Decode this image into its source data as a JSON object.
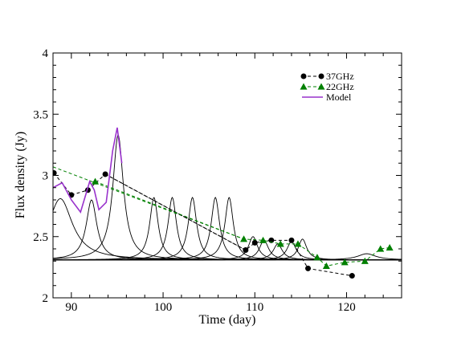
{
  "chart_data": {
    "type": "line",
    "xlabel": "Time (day)",
    "ylabel": "Flux density (Jy)",
    "xlim": [
      88,
      126
    ],
    "ylim": [
      2,
      4
    ],
    "xticks": [
      90,
      100,
      110,
      120
    ],
    "yticks": [
      2,
      2.5,
      3,
      3.5,
      4
    ],
    "xtick_labels": [
      "90",
      "100",
      "110",
      "120"
    ],
    "ytick_labels": [
      "2",
      "2.5",
      "3",
      "3.5",
      "4"
    ],
    "grid": false,
    "legend_position": "top-right",
    "baseline": 2.31,
    "series": [
      {
        "name": "37GHz",
        "style": "dashed-line-circle-markers",
        "color": "#000000",
        "x": [
          88.1,
          90.0,
          91.8,
          93.7,
          109.0,
          110.0,
          111.8,
          114.0,
          115.8,
          120.6
        ],
        "y": [
          3.02,
          2.84,
          2.88,
          3.01,
          2.39,
          2.45,
          2.47,
          2.47,
          2.24,
          2.18
        ]
      },
      {
        "name": "22GHz",
        "style": "dashed-line-triangle-markers",
        "color": "#008000",
        "x": [
          92.6,
          108.8,
          110.9,
          112.8,
          114.7,
          116.8,
          117.8,
          119.8,
          122.0,
          123.7,
          124.7
        ],
        "y": [
          2.95,
          2.48,
          2.47,
          2.44,
          2.44,
          2.33,
          2.26,
          2.29,
          2.3,
          2.4,
          2.41
        ]
      },
      {
        "name": "Model",
        "style": "solid-line",
        "color": "#9932CC",
        "x": [
          88.0,
          89.0,
          90.0,
          91.0,
          92.0,
          92.5,
          93.0,
          93.8,
          94.5,
          95.0,
          95.5
        ],
        "y": [
          2.9,
          2.94,
          2.8,
          2.7,
          2.95,
          2.88,
          2.72,
          2.78,
          3.2,
          3.39,
          3.1
        ]
      }
    ],
    "fit_trends": [
      {
        "color": "#008000",
        "x": [
          88.0,
          108.8
        ],
        "y": [
          3.07,
          2.48
        ]
      },
      {
        "color": "#000000",
        "x": [
          93.7,
          109.0
        ],
        "y": [
          3.01,
          2.39
        ]
      }
    ],
    "components": [
      {
        "center": 88.8,
        "peak": 2.81,
        "width": 1.6
      },
      {
        "center": 92.2,
        "peak": 2.8,
        "width": 0.7
      },
      {
        "center": 95.1,
        "peak": 3.33,
        "width": 0.7
      },
      {
        "center": 99.0,
        "peak": 2.82,
        "width": 0.55
      },
      {
        "center": 101.0,
        "peak": 2.82,
        "width": 0.55
      },
      {
        "center": 103.2,
        "peak": 2.82,
        "width": 0.55
      },
      {
        "center": 105.7,
        "peak": 2.82,
        "width": 0.55
      },
      {
        "center": 107.2,
        "peak": 2.82,
        "width": 0.55
      },
      {
        "center": 109.8,
        "peak": 2.5,
        "width": 0.6
      },
      {
        "center": 111.0,
        "peak": 2.47,
        "width": 0.6
      },
      {
        "center": 112.5,
        "peak": 2.44,
        "width": 0.6
      },
      {
        "center": 114.0,
        "peak": 2.46,
        "width": 0.6
      },
      {
        "center": 115.2,
        "peak": 2.48,
        "width": 0.55
      },
      {
        "center": 120.0,
        "peak": 2.31,
        "width": 1.5
      },
      {
        "center": 122.2,
        "peak": 2.36,
        "width": 1.2
      }
    ]
  }
}
